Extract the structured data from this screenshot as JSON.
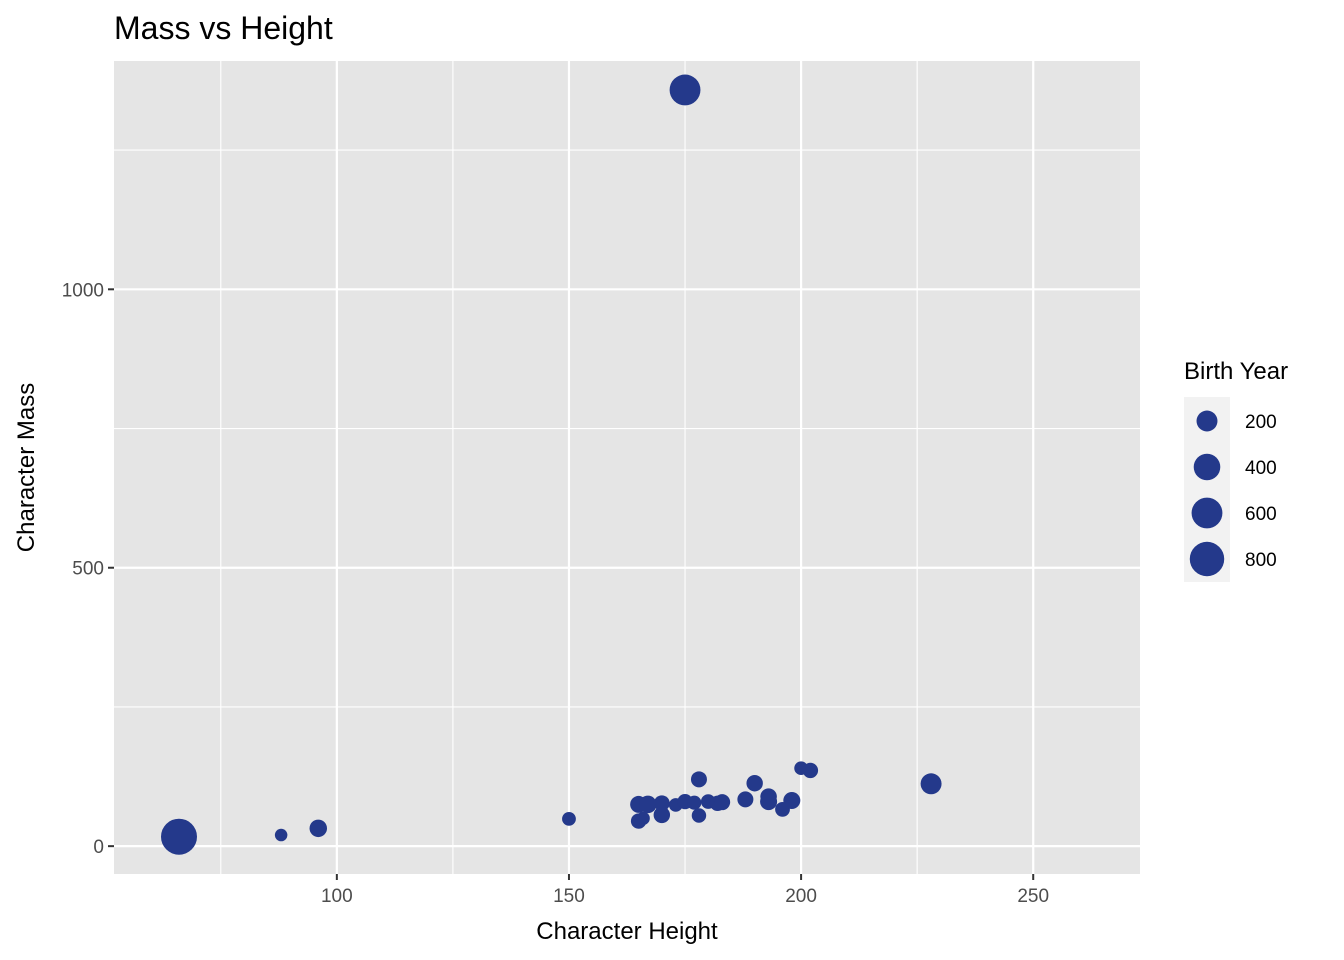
{
  "chart_data": {
    "type": "scatter",
    "title": "Mass vs Height",
    "xlabel": "Character Height",
    "ylabel": "Character Mass",
    "xlim": [
      52,
      273
    ],
    "ylim": [
      -50,
      1410
    ],
    "x_ticks": [
      100,
      150,
      200,
      250
    ],
    "x_minor_ticks": [
      75,
      125,
      175,
      225
    ],
    "y_ticks": [
      0,
      500,
      1000
    ],
    "y_minor_ticks": [
      250,
      750,
      1250
    ],
    "grid": true,
    "legend": {
      "title": "Birth Year",
      "position": "right",
      "entries": [
        {
          "label": "200",
          "value": 200
        },
        {
          "label": "400",
          "value": 400
        },
        {
          "label": "600",
          "value": 600
        },
        {
          "label": "800",
          "value": 800
        }
      ]
    },
    "size_range": [
      10,
      896
    ],
    "point_color": "#24398B",
    "panel_background": "#E5E5E5",
    "grid_color": "#FFFFFF",
    "points": [
      {
        "x": 66,
        "y": 17,
        "size": 896
      },
      {
        "x": 88,
        "y": 20,
        "size": 33
      },
      {
        "x": 96,
        "y": 32,
        "size": 112
      },
      {
        "x": 150,
        "y": 49,
        "size": 48
      },
      {
        "x": 165,
        "y": 45,
        "size": 72
      },
      {
        "x": 166,
        "y": 50,
        "size": 40
      },
      {
        "x": 165,
        "y": 75,
        "size": 100
      },
      {
        "x": 167,
        "y": 75,
        "size": 112
      },
      {
        "x": 170,
        "y": 56,
        "size": 90
      },
      {
        "x": 170,
        "y": 77,
        "size": 80
      },
      {
        "x": 173,
        "y": 74,
        "size": 46
      },
      {
        "x": 175,
        "y": 80,
        "size": 70
      },
      {
        "x": 177,
        "y": 78,
        "size": 52
      },
      {
        "x": 178,
        "y": 55,
        "size": 57
      },
      {
        "x": 178,
        "y": 120,
        "size": 82
      },
      {
        "x": 180,
        "y": 80,
        "size": 60
      },
      {
        "x": 182,
        "y": 77,
        "size": 72
      },
      {
        "x": 183,
        "y": 79,
        "size": 82
      },
      {
        "x": 188,
        "y": 84,
        "size": 82
      },
      {
        "x": 190,
        "y": 113,
        "size": 90
      },
      {
        "x": 193,
        "y": 89,
        "size": 92
      },
      {
        "x": 193,
        "y": 80,
        "size": 102
      },
      {
        "x": 196,
        "y": 66,
        "size": 62
      },
      {
        "x": 198,
        "y": 82,
        "size": 102
      },
      {
        "x": 200,
        "y": 140,
        "size": 46
      },
      {
        "x": 202,
        "y": 136,
        "size": 72
      },
      {
        "x": 228,
        "y": 112,
        "size": 200
      },
      {
        "x": 175,
        "y": 1358,
        "size": 600
      }
    ]
  }
}
